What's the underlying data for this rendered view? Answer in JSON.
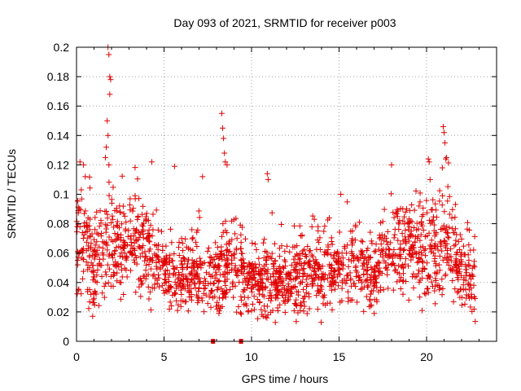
{
  "chart_data": {
    "type": "scatter",
    "title": "Day 093 of 2021, SRMTID for receiver p003",
    "xlabel": "GPS time / hours",
    "ylabel": "SRMTID / TECUs",
    "xlim": [
      0,
      24
    ],
    "ylim": [
      0,
      0.2
    ],
    "x_ticks": [
      0,
      5,
      10,
      15,
      20
    ],
    "x_tick_labels": [
      "0",
      "5",
      "10",
      "15",
      "20"
    ],
    "y_ticks": [
      0,
      0.02,
      0.04,
      0.06,
      0.08,
      0.1,
      0.12,
      0.14,
      0.16,
      0.18,
      0.2
    ],
    "y_tick_labels": [
      "0",
      "0.02",
      "0.04",
      "0.06",
      "0.08",
      "0.1",
      "0.12",
      "0.14",
      "0.16",
      "0.18",
      "0.2"
    ],
    "grid": true,
    "marker": "+",
    "color": "#e00000",
    "series": [
      {
        "name": "SRMTID",
        "x_range": [
          0,
          22.8
        ],
        "typical_y": 0.05,
        "envelope": [
          {
            "x": 0.0,
            "y": 0.065,
            "spread": 0.022
          },
          {
            "x": 0.5,
            "y": 0.07,
            "spread": 0.025
          },
          {
            "x": 1.0,
            "y": 0.045,
            "spread": 0.02
          },
          {
            "x": 1.5,
            "y": 0.06,
            "spread": 0.022
          },
          {
            "x": 2.0,
            "y": 0.065,
            "spread": 0.024
          },
          {
            "x": 2.5,
            "y": 0.06,
            "spread": 0.022
          },
          {
            "x": 3.0,
            "y": 0.07,
            "spread": 0.022
          },
          {
            "x": 4.0,
            "y": 0.065,
            "spread": 0.02
          },
          {
            "x": 4.5,
            "y": 0.05,
            "spread": 0.016
          },
          {
            "x": 5.0,
            "y": 0.05,
            "spread": 0.016
          },
          {
            "x": 6.0,
            "y": 0.045,
            "spread": 0.015
          },
          {
            "x": 7.0,
            "y": 0.045,
            "spread": 0.016
          },
          {
            "x": 7.8,
            "y": 0.04,
            "spread": 0.015
          },
          {
            "x": 8.5,
            "y": 0.055,
            "spread": 0.02
          },
          {
            "x": 9.5,
            "y": 0.045,
            "spread": 0.016
          },
          {
            "x": 10.0,
            "y": 0.04,
            "spread": 0.015
          },
          {
            "x": 11.0,
            "y": 0.04,
            "spread": 0.016
          },
          {
            "x": 12.0,
            "y": 0.04,
            "spread": 0.015
          },
          {
            "x": 13.0,
            "y": 0.045,
            "spread": 0.016
          },
          {
            "x": 14.0,
            "y": 0.05,
            "spread": 0.018
          },
          {
            "x": 15.0,
            "y": 0.05,
            "spread": 0.017
          },
          {
            "x": 16.0,
            "y": 0.05,
            "spread": 0.018
          },
          {
            "x": 17.0,
            "y": 0.045,
            "spread": 0.016
          },
          {
            "x": 18.0,
            "y": 0.06,
            "spread": 0.02
          },
          {
            "x": 19.0,
            "y": 0.065,
            "spread": 0.022
          },
          {
            "x": 20.0,
            "y": 0.06,
            "spread": 0.02
          },
          {
            "x": 21.0,
            "y": 0.065,
            "spread": 0.022
          },
          {
            "x": 22.0,
            "y": 0.05,
            "spread": 0.018
          },
          {
            "x": 22.8,
            "y": 0.04,
            "spread": 0.014
          }
        ],
        "spikes": [
          {
            "x": 1.8,
            "y": 0.2
          },
          {
            "x": 1.85,
            "y": 0.195
          },
          {
            "x": 1.9,
            "y": 0.18
          },
          {
            "x": 1.95,
            "y": 0.178
          },
          {
            "x": 1.75,
            "y": 0.15
          },
          {
            "x": 1.8,
            "y": 0.14
          },
          {
            "x": 1.7,
            "y": 0.132
          },
          {
            "x": 1.9,
            "y": 0.168
          },
          {
            "x": 1.65,
            "y": 0.125
          },
          {
            "x": 1.85,
            "y": 0.12
          },
          {
            "x": 0.2,
            "y": 0.122
          },
          {
            "x": 0.4,
            "y": 0.12
          },
          {
            "x": 0.5,
            "y": 0.112
          },
          {
            "x": 4.3,
            "y": 0.122
          },
          {
            "x": 5.6,
            "y": 0.119
          },
          {
            "x": 8.3,
            "y": 0.155
          },
          {
            "x": 8.35,
            "y": 0.145
          },
          {
            "x": 8.4,
            "y": 0.138
          },
          {
            "x": 8.45,
            "y": 0.128
          },
          {
            "x": 8.5,
            "y": 0.122
          },
          {
            "x": 8.6,
            "y": 0.12
          },
          {
            "x": 7.2,
            "y": 0.112
          },
          {
            "x": 10.9,
            "y": 0.114
          },
          {
            "x": 10.95,
            "y": 0.11
          },
          {
            "x": 15.1,
            "y": 0.1
          },
          {
            "x": 18.0,
            "y": 0.12
          },
          {
            "x": 20.1,
            "y": 0.124
          },
          {
            "x": 20.15,
            "y": 0.122
          },
          {
            "x": 20.2,
            "y": 0.11
          },
          {
            "x": 20.95,
            "y": 0.146
          },
          {
            "x": 21.0,
            "y": 0.142
          },
          {
            "x": 21.05,
            "y": 0.135
          },
          {
            "x": 21.1,
            "y": 0.124
          },
          {
            "x": 20.9,
            "y": 0.118
          }
        ],
        "zero_points": [
          {
            "x": 7.8,
            "y": 0
          },
          {
            "x": 9.4,
            "y": 0
          }
        ]
      }
    ]
  }
}
